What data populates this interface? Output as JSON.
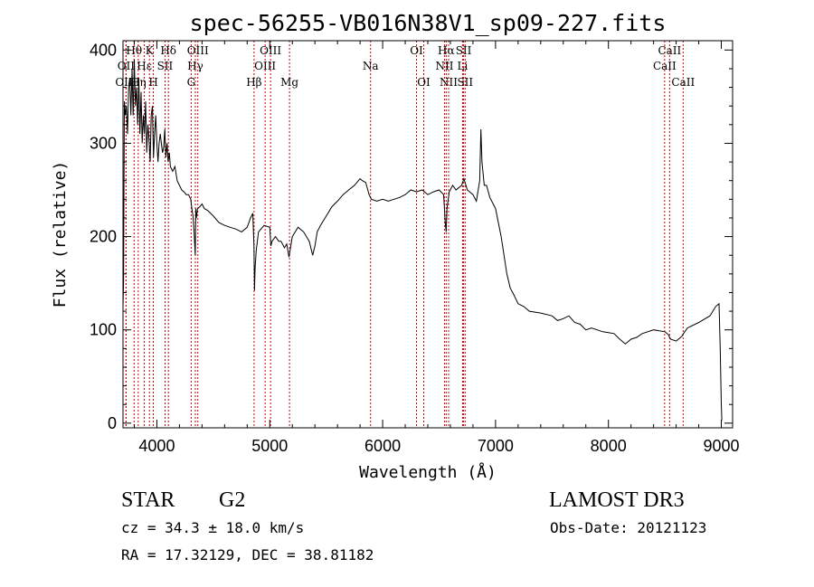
{
  "chart_data": {
    "type": "line",
    "title": "spec-56255-VB016N38V1_sp09-227.fits",
    "xlabel": "Wavelength (Å)",
    "ylabel": "Flux (relative)",
    "xlim": [
      3700,
      9100
    ],
    "ylim": [
      -5,
      410
    ],
    "xticks": [
      {
        "value": 4000,
        "label": "4000"
      },
      {
        "value": 5000,
        "label": "5000"
      },
      {
        "value": 6000,
        "label": "6000"
      },
      {
        "value": 7000,
        "label": "7000"
      },
      {
        "value": 8000,
        "label": "8000"
      },
      {
        "value": 9000,
        "label": "9000"
      }
    ],
    "yticks": [
      {
        "value": 0,
        "label": "0"
      },
      {
        "value": 100,
        "label": "100"
      },
      {
        "value": 200,
        "label": "200"
      },
      {
        "value": 300,
        "label": "300"
      },
      {
        "value": 400,
        "label": "400"
      }
    ],
    "spectral_lines": [
      {
        "label": "Hθ",
        "wavelength": 3798,
        "row": 1
      },
      {
        "label": "OII",
        "wavelength": 3727,
        "row": 2
      },
      {
        "label": "OIII",
        "wavelength": 3727,
        "row": 3
      },
      {
        "label": "Hη",
        "wavelength": 3835,
        "row": 3
      },
      {
        "label": "K",
        "wavelength": 3934,
        "row": 1
      },
      {
        "label": "H",
        "wavelength": 3969,
        "row": 3
      },
      {
        "label": "Hε",
        "wavelength": 3889,
        "row": 2
      },
      {
        "label": "SII",
        "wavelength": 4072,
        "row": 2
      },
      {
        "label": "Hδ",
        "wavelength": 4102,
        "row": 1
      },
      {
        "label": "OIII",
        "wavelength": 4363,
        "row": 1
      },
      {
        "label": "Hγ",
        "wavelength": 4341,
        "row": 2
      },
      {
        "label": "G",
        "wavelength": 4304,
        "row": 3
      },
      {
        "label": "Hβ",
        "wavelength": 4861,
        "row": 3
      },
      {
        "label": "OIII",
        "wavelength": 5007,
        "row": 1
      },
      {
        "label": "OIII",
        "wavelength": 4959,
        "row": 2
      },
      {
        "label": "Mg",
        "wavelength": 5175,
        "row": 3
      },
      {
        "label": "Na",
        "wavelength": 5893,
        "row": 2
      },
      {
        "label": "OI",
        "wavelength": 6300,
        "row": 1
      },
      {
        "label": "OI",
        "wavelength": 6364,
        "row": 3
      },
      {
        "label": "Hα",
        "wavelength": 6563,
        "row": 1
      },
      {
        "label": "NII",
        "wavelength": 6548,
        "row": 2
      },
      {
        "label": "NII",
        "wavelength": 6584,
        "row": 3
      },
      {
        "label": "SII",
        "wavelength": 6717,
        "row": 1
      },
      {
        "label": "Li",
        "wavelength": 6708,
        "row": 2
      },
      {
        "label": "SII",
        "wavelength": 6731,
        "row": 3
      },
      {
        "label": "CaII",
        "wavelength": 8542,
        "row": 1
      },
      {
        "label": "CaII",
        "wavelength": 8498,
        "row": 2
      },
      {
        "label": "CaII",
        "wavelength": 8662,
        "row": 3
      }
    ],
    "series": [
      {
        "x": [
          3700,
          3705,
          3712,
          3720,
          3730,
          3740,
          3750,
          3760,
          3770,
          3780,
          3790,
          3800,
          3810,
          3820,
          3830,
          3840,
          3850,
          3860,
          3870,
          3880,
          3890,
          3900,
          3910,
          3920,
          3930,
          3940,
          3950,
          3960,
          3970,
          3980,
          3990,
          4000,
          4010,
          4020,
          4030,
          4040,
          4050,
          4060,
          4070,
          4080,
          4090,
          4100,
          4110,
          4120,
          4140,
          4160,
          4180,
          4200,
          4220,
          4240,
          4260,
          4280,
          4300,
          4310,
          4320,
          4330,
          4340,
          4345,
          4350,
          4360,
          4380,
          4400,
          4420,
          4450,
          4500,
          4550,
          4600,
          4650,
          4700,
          4750,
          4800,
          4830,
          4850,
          4860,
          4865,
          4870,
          4880,
          4900,
          4950,
          5000,
          5010,
          5020,
          5050,
          5080,
          5100,
          5130,
          5150,
          5170,
          5180,
          5200,
          5250,
          5300,
          5350,
          5380,
          5400,
          5420,
          5450,
          5500,
          5550,
          5600,
          5650,
          5700,
          5750,
          5800,
          5820,
          5850,
          5880,
          5900,
          5950,
          6000,
          6050,
          6100,
          6150,
          6200,
          6250,
          6300,
          6350,
          6400,
          6450,
          6500,
          6540,
          6555,
          6563,
          6570,
          6590,
          6620,
          6650,
          6700,
          6720,
          6750,
          6800,
          6830,
          6860,
          6870,
          6880,
          6900,
          6920,
          6950,
          7000,
          7050,
          7100,
          7130,
          7160,
          7200,
          7250,
          7300,
          7400,
          7500,
          7550,
          7600,
          7650,
          7700,
          7750,
          7800,
          7850,
          7900,
          7950,
          8000,
          8050,
          8100,
          8150,
          8200,
          8250,
          8300,
          8400,
          8500,
          8530,
          8550,
          8600,
          8650,
          8665,
          8700,
          8800,
          8900,
          8950,
          8980,
          8990,
          9000,
          9005
        ],
        "values": [
          125,
          150,
          345,
          330,
          340,
          310,
          360,
          370,
          330,
          380,
          330,
          390,
          340,
          360,
          320,
          370,
          310,
          355,
          300,
          330,
          310,
          345,
          290,
          320,
          305,
          280,
          330,
          340,
          285,
          310,
          330,
          300,
          280,
          300,
          310,
          300,
          290,
          295,
          315,
          285,
          300,
          280,
          290,
          275,
          270,
          275,
          260,
          255,
          250,
          248,
          245,
          245,
          240,
          230,
          222,
          205,
          180,
          230,
          220,
          230,
          232,
          235,
          230,
          228,
          222,
          215,
          212,
          210,
          208,
          205,
          210,
          220,
          225,
          190,
          142,
          165,
          185,
          205,
          212,
          210,
          190,
          195,
          200,
          195,
          195,
          188,
          192,
          178,
          185,
          200,
          210,
          205,
          195,
          180,
          190,
          205,
          212,
          222,
          232,
          238,
          245,
          250,
          255,
          262,
          260,
          258,
          245,
          240,
          238,
          240,
          238,
          240,
          242,
          245,
          250,
          248,
          250,
          245,
          248,
          250,
          245,
          215,
          205,
          230,
          248,
          255,
          250,
          255,
          262,
          250,
          245,
          238,
          260,
          315,
          280,
          255,
          255,
          242,
          230,
          200,
          160,
          145,
          138,
          128,
          125,
          120,
          118,
          115,
          110,
          112,
          115,
          108,
          106,
          100,
          102,
          100,
          98,
          97,
          96,
          90,
          85,
          90,
          92,
          96,
          100,
          98,
          95,
          90,
          88,
          93,
          96,
          102,
          108,
          115,
          125,
          128,
          80,
          20,
          3
        ]
      }
    ]
  },
  "info": {
    "object_class": "STAR",
    "subclass": "G2",
    "survey": "LAMOST DR3",
    "cz": "cz = 34.3 ± 18.0 km/s",
    "obs_date": "Obs-Date: 20121123",
    "coords": "RA =  17.32129, DEC =  38.81182"
  },
  "colors": {
    "spectrum": "#000000",
    "line_marker": "#cc0000",
    "axes": "#000000"
  }
}
